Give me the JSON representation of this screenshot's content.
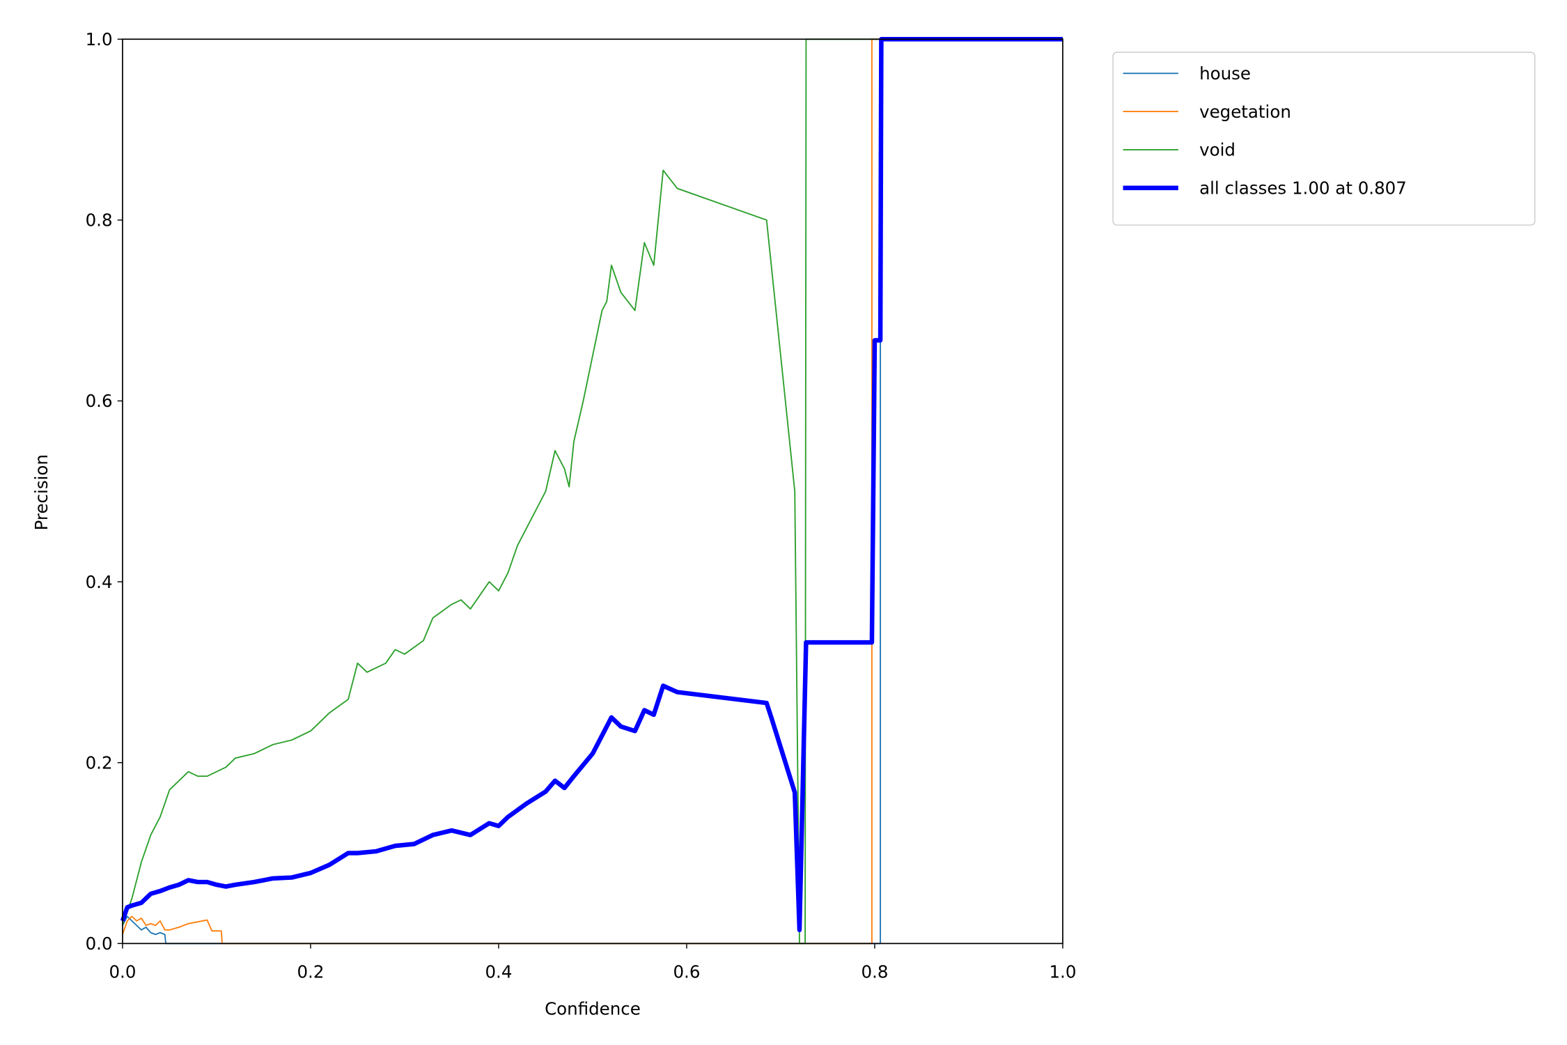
{
  "chart_data": {
    "type": "line",
    "xlabel": "Confidence",
    "ylabel": "Precision",
    "xlim": [
      0,
      1
    ],
    "ylim": [
      0,
      1
    ],
    "xticks": [
      {
        "value": 0,
        "label": "0.0"
      },
      {
        "value": 0.2,
        "label": "0.2"
      },
      {
        "value": 0.4,
        "label": "0.4"
      },
      {
        "value": 0.6,
        "label": "0.6"
      },
      {
        "value": 0.8,
        "label": "0.8"
      },
      {
        "value": 1,
        "label": "1.0"
      }
    ],
    "yticks": [
      {
        "value": 0,
        "label": "0.0"
      },
      {
        "value": 0.2,
        "label": "0.2"
      },
      {
        "value": 0.4,
        "label": "0.4"
      },
      {
        "value": 0.6,
        "label": "0.6"
      },
      {
        "value": 0.8,
        "label": "0.8"
      },
      {
        "value": 1,
        "label": "1.0"
      }
    ],
    "grid": false,
    "legend": "outside upper right",
    "series": [
      {
        "name": "house",
        "color": "#1f77b4",
        "x": [
          0,
          0.005,
          0.01,
          0.015,
          0.02,
          0.025,
          0.03,
          0.035,
          0.04,
          0.045,
          0.046,
          0.806,
          0.806,
          1
        ],
        "values": [
          0.02,
          0.03,
          0.025,
          0.02,
          0.015,
          0.018,
          0.012,
          0.01,
          0.012,
          0.01,
          0,
          0,
          1,
          1
        ]
      },
      {
        "name": "vegetation",
        "color": "#ff7f0e",
        "x": [
          0,
          0.005,
          0.01,
          0.015,
          0.02,
          0.025,
          0.03,
          0.035,
          0.04,
          0.045,
          0.05,
          0.06,
          0.07,
          0.08,
          0.09,
          0.095,
          0.1,
          0.105,
          0.106,
          0.797,
          0.797,
          1
        ],
        "values": [
          0.01,
          0.025,
          0.03,
          0.025,
          0.028,
          0.02,
          0.022,
          0.02,
          0.025,
          0.015,
          0.015,
          0.018,
          0.022,
          0.024,
          0.026,
          0.014,
          0.014,
          0.014,
          0,
          0,
          1,
          1
        ]
      },
      {
        "name": "void",
        "color": "#2ca02c",
        "x": [
          0,
          0.01,
          0.02,
          0.03,
          0.04,
          0.05,
          0.06,
          0.07,
          0.08,
          0.09,
          0.1,
          0.11,
          0.12,
          0.14,
          0.16,
          0.18,
          0.2,
          0.22,
          0.24,
          0.25,
          0.26,
          0.28,
          0.29,
          0.3,
          0.32,
          0.33,
          0.35,
          0.36,
          0.37,
          0.39,
          0.4,
          0.41,
          0.42,
          0.44,
          0.45,
          0.46,
          0.47,
          0.475,
          0.48,
          0.49,
          0.5,
          0.51,
          0.515,
          0.52,
          0.53,
          0.545,
          0.555,
          0.565,
          0.575,
          0.59,
          0.685,
          0.69,
          0.715,
          0.72,
          0.726,
          0.727,
          1
        ],
        "values": [
          0.02,
          0.05,
          0.09,
          0.12,
          0.14,
          0.17,
          0.18,
          0.19,
          0.185,
          0.185,
          0.19,
          0.195,
          0.205,
          0.21,
          0.22,
          0.225,
          0.235,
          0.255,
          0.27,
          0.31,
          0.3,
          0.31,
          0.325,
          0.32,
          0.335,
          0.36,
          0.375,
          0.38,
          0.37,
          0.4,
          0.39,
          0.41,
          0.44,
          0.48,
          0.5,
          0.545,
          0.525,
          0.505,
          0.555,
          0.6,
          0.65,
          0.7,
          0.71,
          0.75,
          0.72,
          0.7,
          0.775,
          0.75,
          0.855,
          0.835,
          0.8,
          0.75,
          0.5,
          0,
          0,
          1,
          1
        ]
      },
      {
        "name": "all classes 1.00 at 0.807",
        "color": "#0000ff",
        "x": [
          0,
          0.005,
          0.01,
          0.02,
          0.03,
          0.04,
          0.05,
          0.06,
          0.07,
          0.08,
          0.09,
          0.1,
          0.11,
          0.12,
          0.14,
          0.16,
          0.18,
          0.2,
          0.22,
          0.24,
          0.25,
          0.27,
          0.29,
          0.31,
          0.33,
          0.35,
          0.37,
          0.39,
          0.4,
          0.41,
          0.43,
          0.45,
          0.46,
          0.47,
          0.48,
          0.5,
          0.51,
          0.52,
          0.53,
          0.545,
          0.555,
          0.565,
          0.575,
          0.59,
          0.685,
          0.69,
          0.715,
          0.72,
          0.727,
          0.797,
          0.8,
          0.806,
          0.807,
          1
        ],
        "values": [
          0.025,
          0.04,
          0.042,
          0.045,
          0.055,
          0.058,
          0.062,
          0.065,
          0.07,
          0.068,
          0.068,
          0.065,
          0.063,
          0.065,
          0.068,
          0.072,
          0.073,
          0.078,
          0.087,
          0.1,
          0.1,
          0.102,
          0.108,
          0.11,
          0.12,
          0.125,
          0.12,
          0.133,
          0.13,
          0.14,
          0.155,
          0.168,
          0.18,
          0.172,
          0.185,
          0.21,
          0.23,
          0.25,
          0.24,
          0.235,
          0.258,
          0.253,
          0.285,
          0.278,
          0.266,
          0.25,
          0.167,
          0.015,
          0.333,
          0.333,
          0.667,
          0.667,
          1,
          1
        ]
      }
    ]
  }
}
